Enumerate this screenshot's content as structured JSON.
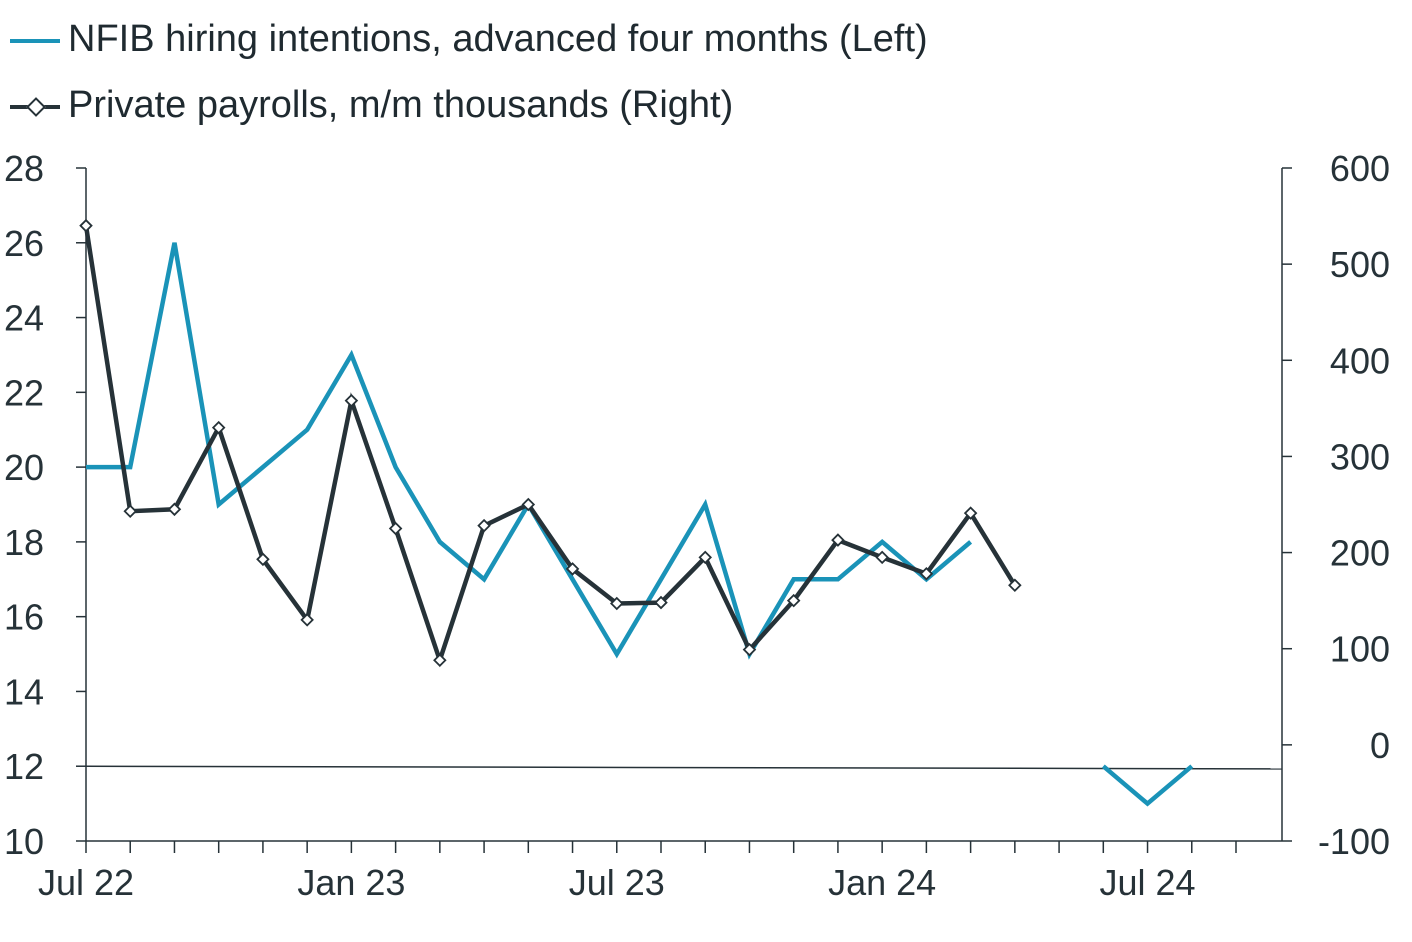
{
  "legend": {
    "nfib_label": "NFIB hiring intentions, advanced four months (Left)",
    "payrolls_label": "Private payrolls, m/m thousands (Right)"
  },
  "chart_data": {
    "type": "line",
    "x": [
      "Jul 22",
      "Aug 22",
      "Sep 22",
      "Oct 22",
      "Nov 22",
      "Dec 22",
      "Jan 23",
      "Feb 23",
      "Mar 23",
      "Apr 23",
      "May 23",
      "Jun 23",
      "Jul 23",
      "Aug 23",
      "Sep 23",
      "Oct 23",
      "Nov 23",
      "Dec 23",
      "Jan 24",
      "Feb 24",
      "Mar 24",
      "Apr 24",
      "May 24",
      "Jun 24",
      "Jul 24",
      "Aug 24",
      "Sep 24"
    ],
    "x_tick_labels": [
      "Jul 22",
      "Jan 23",
      "Jul 23",
      "Jan 24",
      "Jul 24"
    ],
    "left_axis": {
      "ylim": [
        10,
        28
      ],
      "ticks": [
        "28",
        "26",
        "24",
        "22",
        "20",
        "18",
        "16",
        "14",
        "12",
        "10"
      ]
    },
    "right_axis": {
      "ylim": [
        -100,
        600
      ],
      "ticks": [
        "600",
        "500",
        "400",
        "300",
        "200",
        "100",
        "0",
        "-100"
      ]
    },
    "series": [
      {
        "name": "NFIB hiring intentions, advanced four months (Left)",
        "axis": "left",
        "color": "#1a93b8",
        "values": [
          20,
          20,
          26,
          19,
          20,
          21,
          23,
          20,
          18,
          17,
          19,
          17,
          15,
          17,
          19,
          15,
          17,
          17,
          18,
          17,
          18,
          null,
          null,
          12,
          11,
          12,
          null
        ]
      },
      {
        "name": "Private payrolls, m/m thousands (Right)",
        "axis": "right",
        "color": "#263238",
        "marker": "diamond",
        "values": [
          540,
          243,
          245,
          330,
          193,
          130,
          358,
          225,
          88,
          228,
          250,
          183,
          147,
          148,
          195,
          99,
          150,
          213,
          195,
          178,
          241,
          166,
          null,
          null,
          null,
          null,
          null
        ]
      }
    ],
    "grid": false
  },
  "colors": {
    "nfib": "#1a93b8",
    "payrolls": "#263238",
    "axis": "#263238"
  }
}
